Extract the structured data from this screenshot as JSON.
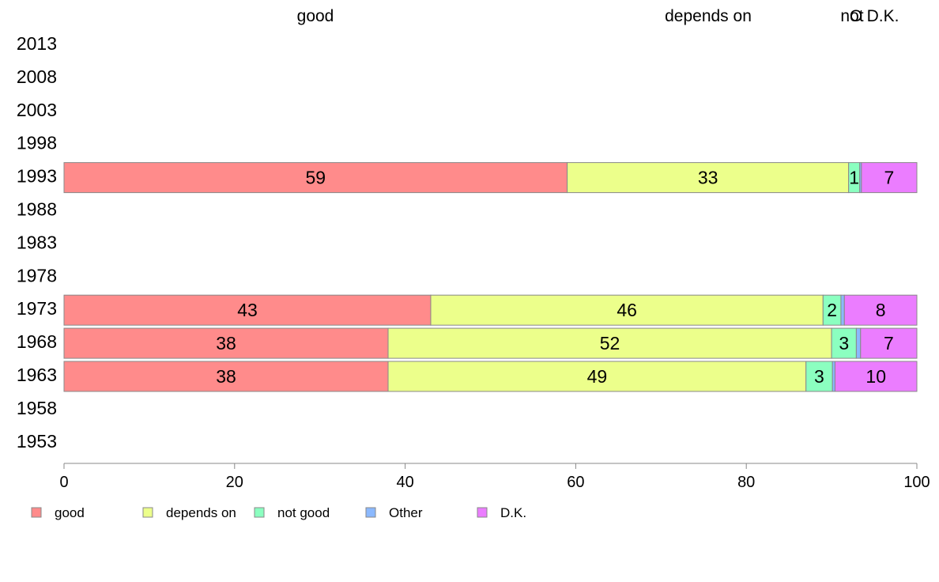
{
  "chart_data": {
    "type": "bar",
    "orientation": "horizontal",
    "stacked": true,
    "categories": [
      "2013",
      "2008",
      "2003",
      "1998",
      "1993",
      "1988",
      "1983",
      "1978",
      "1973",
      "1968",
      "1963",
      "1958",
      "1953"
    ],
    "series": [
      {
        "name": "good",
        "color": "#ff8b8b",
        "values": [
          null,
          null,
          null,
          null,
          59,
          null,
          null,
          null,
          43,
          38,
          38,
          null,
          null
        ],
        "labels": [
          "",
          "",
          "",
          "",
          "59",
          "",
          "",
          "",
          "43",
          "38",
          "38",
          "",
          ""
        ]
      },
      {
        "name": "depends on",
        "color": "#ecff8b",
        "values": [
          null,
          null,
          null,
          null,
          33,
          null,
          null,
          null,
          46,
          52,
          49,
          null,
          null
        ],
        "labels": [
          "",
          "",
          "",
          "",
          "33",
          "",
          "",
          "",
          "46",
          "52",
          "49",
          "",
          ""
        ]
      },
      {
        "name": "not good",
        "color": "#8bffc0",
        "values": [
          null,
          null,
          null,
          null,
          1.3,
          null,
          null,
          null,
          2.1,
          2.9,
          3.1,
          null,
          null
        ],
        "labels": [
          "",
          "",
          "",
          "",
          "1",
          "",
          "",
          "",
          "2",
          "3",
          "3",
          "",
          ""
        ]
      },
      {
        "name": "Other",
        "color": "#8bb9ff",
        "values": [
          null,
          null,
          null,
          null,
          0.2,
          null,
          null,
          null,
          0.4,
          0.5,
          0.3,
          null,
          null
        ],
        "labels": [
          "",
          "",
          "",
          "",
          "",
          "",
          "",
          "",
          "",
          "",
          "",
          "",
          ""
        ]
      },
      {
        "name": "D.K.",
        "color": "#eb7dff",
        "values": [
          null,
          null,
          null,
          null,
          6.5,
          null,
          null,
          null,
          8.5,
          6.6,
          9.6,
          null,
          null
        ],
        "labels": [
          "",
          "",
          "",
          "",
          "7",
          "",
          "",
          "",
          "8",
          "7",
          "10",
          "",
          ""
        ]
      }
    ],
    "top_labels": [
      "good",
      "depends on",
      "not",
      "O",
      "D.K."
    ],
    "xlim": [
      0,
      100
    ],
    "xticks": [
      "0",
      "20",
      "40",
      "60",
      "80",
      "100"
    ],
    "grid": false,
    "legend_position": "bottom-left"
  }
}
